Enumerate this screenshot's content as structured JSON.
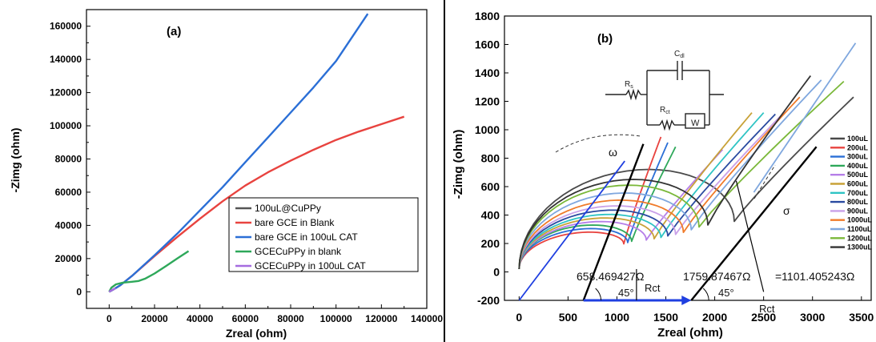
{
  "chart_data": [
    {
      "panel": "(a)",
      "type": "line",
      "xlabel": "Zreal (ohm)",
      "ylabel": "-Zimg (ohm)",
      "xlim": [
        -10000,
        140000
      ],
      "ylim": [
        -10000,
        170000
      ],
      "xticks": [
        0,
        20000,
        40000,
        60000,
        80000,
        100000,
        120000,
        140000
      ],
      "yticks": [
        0,
        20000,
        40000,
        60000,
        80000,
        100000,
        120000,
        140000,
        160000
      ],
      "xtick_labels": [
        "0",
        "20000",
        "40000",
        "60000",
        "80000",
        "100000",
        "120000",
        "140000"
      ],
      "ytick_labels": [
        "0",
        "20000",
        "40000",
        "60000",
        "80000",
        "100000",
        "120000",
        "140000",
        "160000"
      ],
      "grid": false,
      "legend_position": "lower-right",
      "series": [
        {
          "name": "100uL@CuPPy",
          "color": "#555555",
          "x": [],
          "y": []
        },
        {
          "name": "bare GCE in Blank",
          "color": "#e8433f",
          "x": [
            0,
            2000,
            5000,
            10000,
            20000,
            30000,
            40000,
            50000,
            60000,
            70000,
            80000,
            90000,
            100000,
            110000,
            120000,
            130000
          ],
          "y": [
            0,
            1500,
            4000,
            9500,
            21500,
            33000,
            44000,
            54500,
            64000,
            72000,
            79000,
            85500,
            91500,
            96500,
            101000,
            105500
          ]
        },
        {
          "name": "bare GCE in 100uL CAT",
          "color": "#2b6fd6",
          "x": [
            0,
            2000,
            5000,
            10000,
            20000,
            30000,
            40000,
            50000,
            60000,
            70000,
            80000,
            90000,
            100000,
            114000
          ],
          "y": [
            0,
            1500,
            4000,
            9500,
            22000,
            35000,
            49000,
            63000,
            78000,
            93000,
            108000,
            123000,
            139000,
            167500
          ]
        },
        {
          "name": "GCECuPPy in blank",
          "color": "#2ea85a",
          "x": [
            0,
            1000,
            3000,
            6000,
            10000,
            13000,
            16000,
            20000,
            25000,
            30000,
            35000
          ],
          "y": [
            0,
            2500,
            4500,
            5500,
            6000,
            6500,
            8000,
            11000,
            15500,
            20000,
            24500
          ]
        },
        {
          "name": "GCECuPPy in 100uL CAT",
          "color": "#a56ce0",
          "x": [
            0,
            800,
            1500,
            2200,
            2800
          ],
          "y": [
            0,
            800,
            1200,
            1700,
            2200
          ]
        }
      ]
    },
    {
      "panel": "(b)",
      "type": "line",
      "xlabel": "Zreal (ohm)",
      "ylabel": "-Zimg (ohm)",
      "xlim": [
        -150,
        3600
      ],
      "ylim": [
        -200,
        1800
      ],
      "xticks": [
        0,
        500,
        1000,
        1500,
        2000,
        2500,
        3000,
        3500
      ],
      "yticks": [
        -200,
        0,
        200,
        400,
        600,
        800,
        1000,
        1200,
        1400,
        1600,
        1800
      ],
      "xtick_labels": [
        "0",
        "500",
        "1000",
        "1500",
        "2000",
        "2500",
        "3000",
        "3500"
      ],
      "ytick_labels": [
        "-200",
        "0",
        "200",
        "400",
        "600",
        "800",
        "1000",
        "1200",
        "1400",
        "1600",
        "1800"
      ],
      "grid": false,
      "legend_position": "right",
      "series": [
        {
          "name": "100uL",
          "color": "#4a4a4a",
          "rct": 2200,
          "peak": 710,
          "tail_end": [
            3420,
            1230
          ]
        },
        {
          "name": "200uL",
          "color": "#e8433f",
          "rct": 1070,
          "peak": 270,
          "tail_end": [
            1450,
            950
          ]
        },
        {
          "name": "300uL",
          "color": "#2b6fd6",
          "rct": 1110,
          "peak": 295,
          "tail_end": [
            1520,
            910
          ]
        },
        {
          "name": "400uL",
          "color": "#2ea85a",
          "rct": 1150,
          "peak": 320,
          "tail_end": [
            1600,
            880
          ]
        },
        {
          "name": "500uL",
          "color": "#b57ee8",
          "rct": 1300,
          "peak": 345,
          "tail_end": [
            2080,
            860
          ]
        },
        {
          "name": "600uL",
          "color": "#c8a238",
          "rct": 1380,
          "peak": 370,
          "tail_end": [
            2380,
            1120
          ]
        },
        {
          "name": "700uL",
          "color": "#2fc4c4",
          "rct": 1450,
          "peak": 395,
          "tail_end": [
            2500,
            1120
          ]
        },
        {
          "name": "800uL",
          "color": "#2a4aa0",
          "rct": 1520,
          "peak": 425,
          "tail_end": [
            2620,
            1110
          ]
        },
        {
          "name": "900uL",
          "color": "#c9a0e8",
          "rct": 1600,
          "peak": 455,
          "tail_end": [
            2720,
            1130
          ]
        },
        {
          "name": "1000uL",
          "color": "#f07b2a",
          "rct": 1680,
          "peak": 495,
          "tail_end": [
            2870,
            1230
          ]
        },
        {
          "name": "1100uL",
          "color": "#7fa7de",
          "rct": 1760,
          "peak": 545,
          "tail_end": [
            3090,
            1350
          ]
        },
        {
          "name": "1200uL",
          "color": "#7ab839",
          "rct": 1840,
          "peak": 600,
          "tail_end": [
            3320,
            1340
          ]
        },
        {
          "name": "1300uL",
          "color": "#333333",
          "rct": 1930,
          "peak": 640,
          "tail_end": [
            2980,
            1380
          ]
        }
      ],
      "extra_tail": {
        "color": "#7fa7de",
        "start": [
          2400,
          560
        ],
        "end": [
          3440,
          1610
        ]
      },
      "circuit_labels": {
        "rs": "R",
        "rs_sub": "s",
        "cdl": "C",
        "cdl_sub": "dl",
        "rct": "R",
        "rct_sub": "ct",
        "w": "W"
      },
      "annotations": {
        "omega": "ω",
        "sigma": "σ",
        "value1": "658.469427Ω",
        "value2": "1759.87467Ω",
        "value3": "=1101.405243Ω",
        "angle1": "45°",
        "angle2": "45°",
        "rct1": "Rct",
        "rct2": "Rct",
        "lines": [
          {
            "x1": 658,
            "y1": -200,
            "x2": 1270,
            "y2": 900
          },
          {
            "x1": 1760,
            "y1": -200,
            "x2": 3040,
            "y2": 880
          },
          {
            "x1": 0,
            "y1": -200,
            "x2": 1080,
            "y2": 780
          }
        ],
        "arrow_x": [
          658,
          1760
        ]
      }
    }
  ]
}
